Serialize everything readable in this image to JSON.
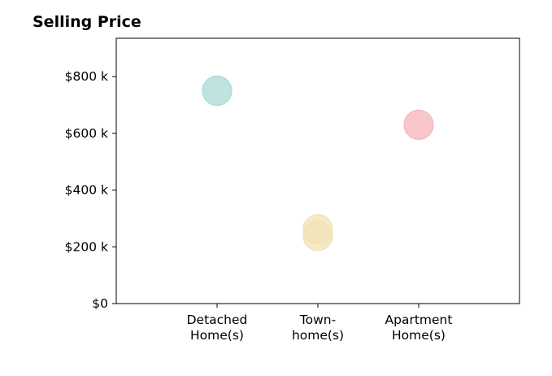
{
  "chart_data": {
    "type": "scatter",
    "title": "Selling Price",
    "xlabel": "",
    "ylabel": "",
    "categories": [
      [
        "Detached",
        "Home(s)"
      ],
      [
        "Town-",
        "home(s)"
      ],
      [
        "Apartment",
        "Home(s)"
      ]
    ],
    "y_ticks": [
      {
        "value": 0,
        "label": "$0"
      },
      {
        "value": 200,
        "label": "$200 k"
      },
      {
        "value": 400,
        "label": "$400 k"
      },
      {
        "value": 600,
        "label": "$600 k"
      },
      {
        "value": 800,
        "label": "$800 k"
      }
    ],
    "ylim": [
      0,
      935
    ],
    "xlim": [
      -1,
      3
    ],
    "grid": false,
    "points": [
      {
        "category": 0,
        "y": 750,
        "color": "#a8dad5"
      },
      {
        "category": 1,
        "y": 262,
        "color": "#f2e2b4"
      },
      {
        "category": 1,
        "y": 238,
        "color": "#f2e2b4"
      },
      {
        "category": 2,
        "y": 630,
        "color": "#f6b3b9"
      }
    ],
    "point_opacity": 0.75
  }
}
